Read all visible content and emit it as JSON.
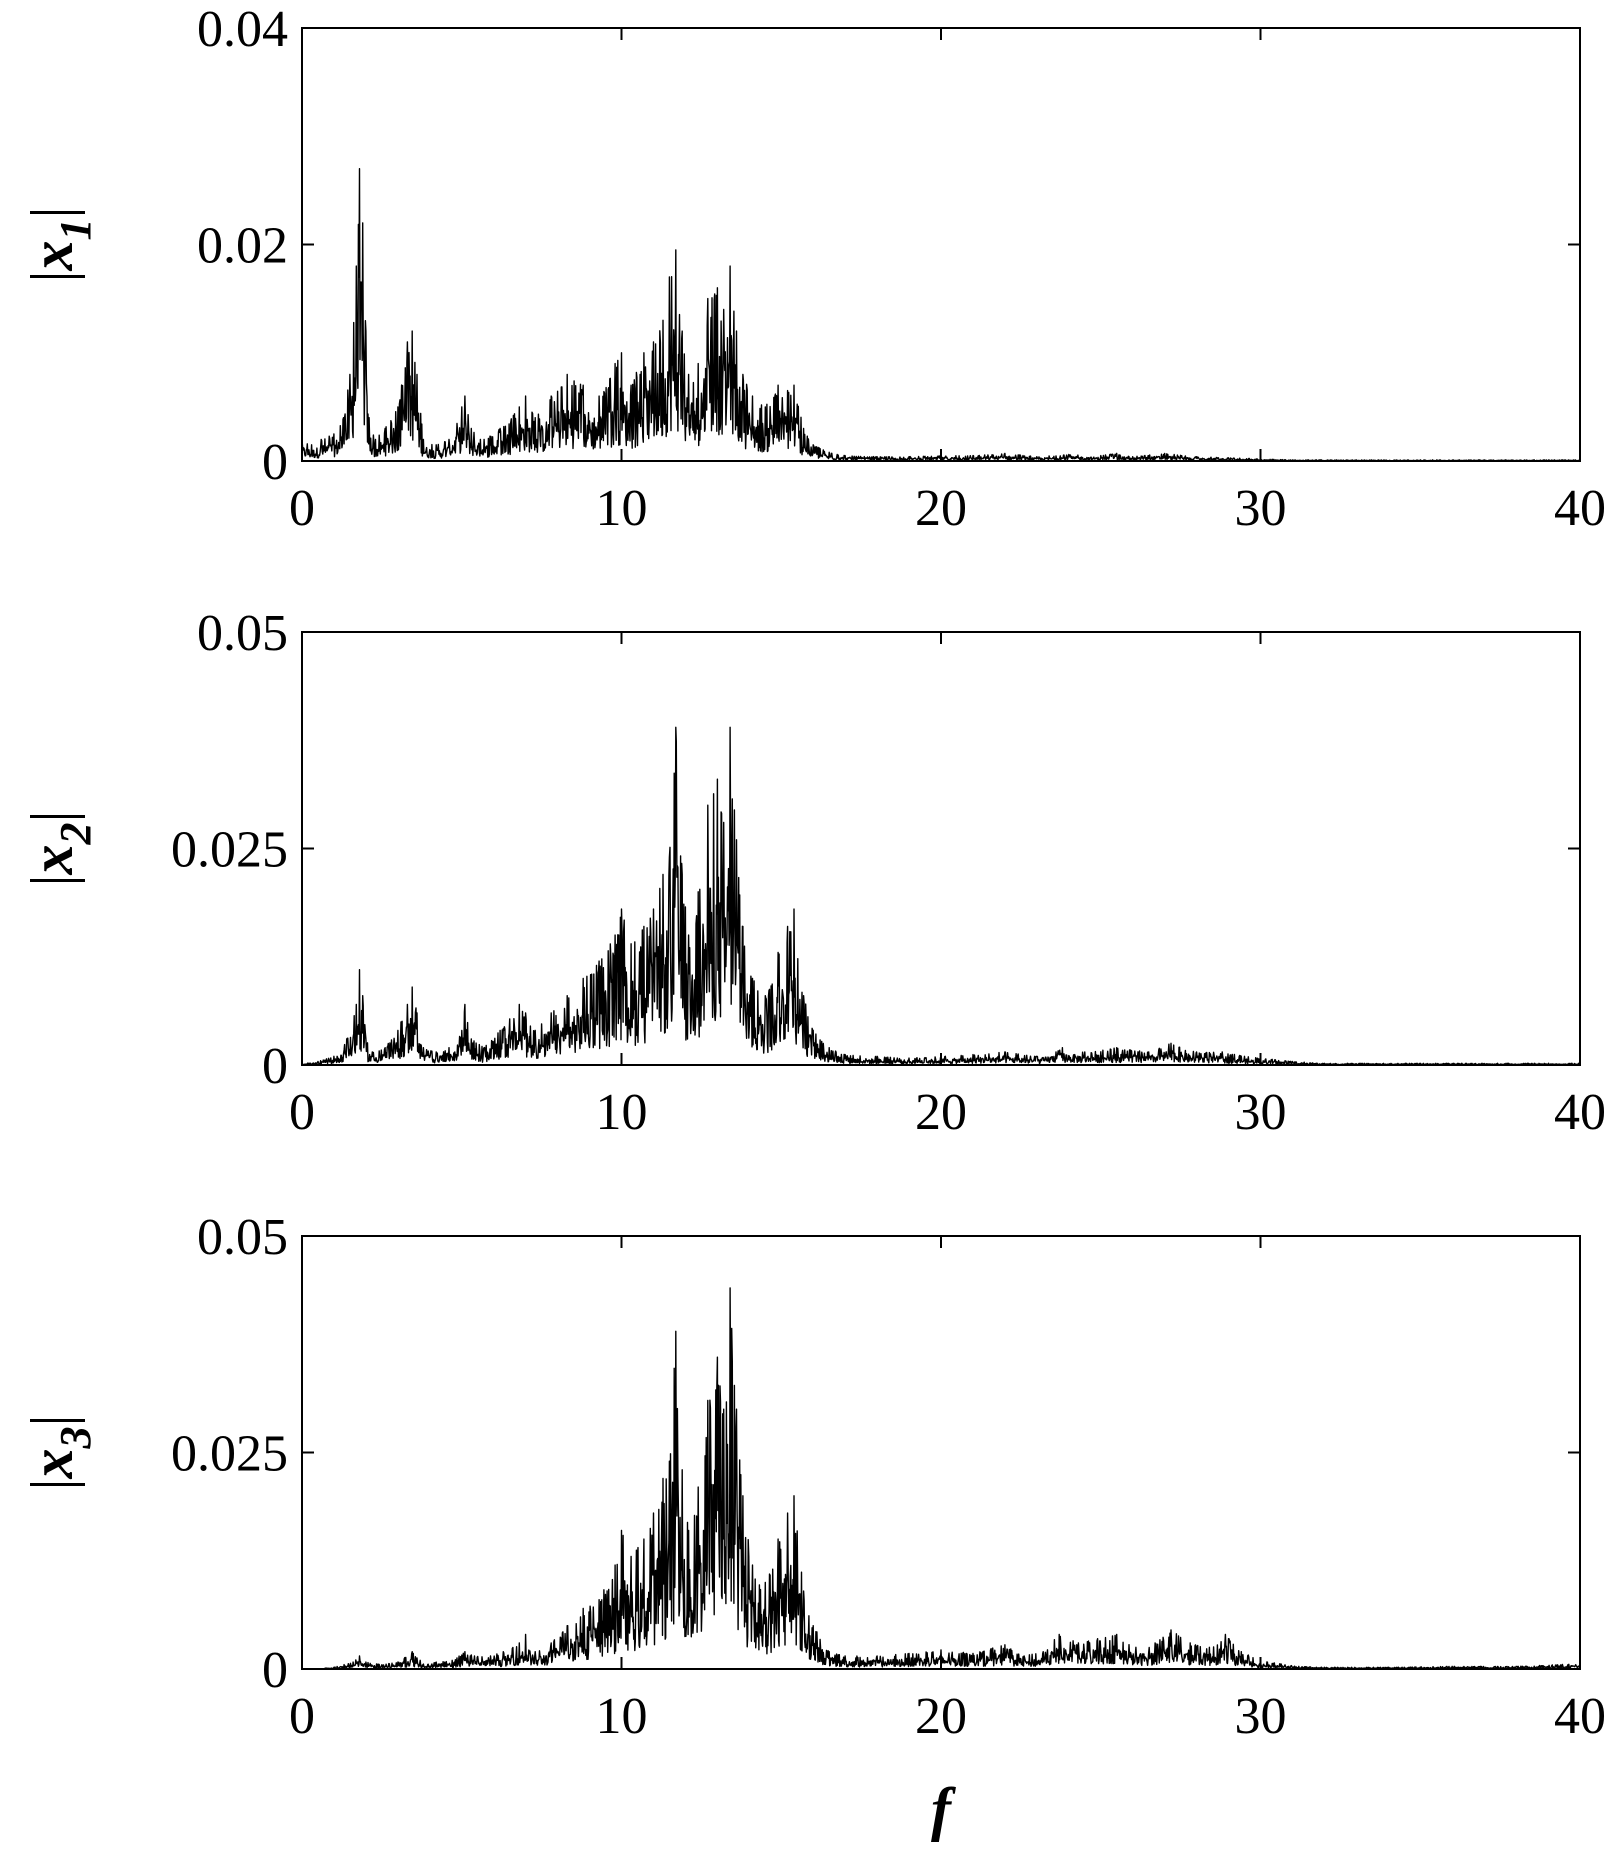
{
  "chart_data": [
    {
      "type": "line",
      "ylabel": "|x1|",
      "ylabel_main": "x",
      "ylabel_sub": "1",
      "xlim": [
        0,
        40
      ],
      "ylim": [
        0,
        0.04
      ],
      "xticks": [
        "0",
        "10",
        "20",
        "30",
        "40"
      ],
      "yticks": [
        "0",
        "0.02",
        "0.04"
      ],
      "ytick_values": [
        0,
        0.02,
        0.04
      ],
      "grid": false,
      "series": [
        {
          "x": [
            0,
            0.3,
            0.6,
            1.0,
            1.3,
            1.5,
            1.7,
            1.8,
            1.9,
            2.0,
            2.1,
            2.3,
            2.6,
            3.0,
            3.3,
            3.45,
            3.6,
            3.8,
            4.2,
            4.6,
            5.0,
            5.1,
            5.3,
            5.7,
            6.2,
            6.8,
            7.0,
            7.3,
            7.8,
            8.3,
            8.8,
            9.3,
            9.8,
            10.0,
            10.3,
            10.7,
            11.0,
            11.3,
            11.5,
            11.7,
            11.9,
            12.1,
            12.4,
            12.7,
            13.0,
            13.2,
            13.4,
            13.6,
            13.8,
            14.1,
            14.5,
            14.9,
            15.2,
            15.4,
            15.7,
            16.0,
            16.5,
            17.0,
            18.0,
            19.0,
            20.0,
            21.0,
            22.0,
            23.0,
            24.0,
            25.0,
            25.5,
            26.0,
            27.0,
            28.0,
            29.0,
            30.0,
            31.0,
            33.0,
            35.0,
            37.0,
            40.0
          ],
          "y": [
            0.002,
            0.0015,
            0.002,
            0.0025,
            0.004,
            0.008,
            0.018,
            0.027,
            0.022,
            0.012,
            0.004,
            0.002,
            0.003,
            0.005,
            0.011,
            0.012,
            0.008,
            0.002,
            0.0015,
            0.002,
            0.005,
            0.006,
            0.003,
            0.002,
            0.003,
            0.005,
            0.006,
            0.004,
            0.006,
            0.008,
            0.007,
            0.006,
            0.009,
            0.01,
            0.007,
            0.01,
            0.011,
            0.013,
            0.017,
            0.0195,
            0.012,
            0.008,
            0.009,
            0.015,
            0.016,
            0.014,
            0.018,
            0.012,
            0.008,
            0.006,
            0.005,
            0.007,
            0.0065,
            0.007,
            0.003,
            0.0015,
            0.0008,
            0.0005,
            0.0004,
            0.0004,
            0.0005,
            0.0005,
            0.0007,
            0.0004,
            0.0006,
            0.0005,
            0.0007,
            0.0004,
            0.0007,
            0.0004,
            0.0003,
            0.0002,
            0.0001,
            0.0001,
            0.0001,
            0.0001,
            0.0001
          ]
        }
      ]
    },
    {
      "type": "line",
      "ylabel": "|x2|",
      "ylabel_main": "x",
      "ylabel_sub": "2",
      "xlim": [
        0,
        40
      ],
      "ylim": [
        0,
        0.05
      ],
      "xticks": [
        "0",
        "10",
        "20",
        "30",
        "40"
      ],
      "yticks": [
        "0",
        "0.025",
        "0.05"
      ],
      "ytick_values": [
        0,
        0.025,
        0.05
      ],
      "grid": false,
      "series": [
        {
          "x": [
            0,
            0.5,
            1.0,
            1.4,
            1.7,
            1.8,
            1.9,
            2.0,
            2.2,
            2.6,
            3.0,
            3.3,
            3.45,
            3.6,
            3.8,
            4.2,
            4.6,
            5.0,
            5.1,
            5.3,
            5.7,
            6.2,
            6.8,
            7.0,
            7.3,
            7.8,
            8.3,
            8.8,
            9.3,
            9.8,
            10.0,
            10.3,
            10.7,
            11.0,
            11.3,
            11.5,
            11.7,
            11.9,
            12.1,
            12.4,
            12.7,
            13.0,
            13.2,
            13.4,
            13.6,
            13.8,
            14.1,
            14.5,
            14.9,
            15.2,
            15.4,
            15.7,
            16.0,
            16.5,
            17.0,
            18.0,
            19.0,
            20.0,
            21.0,
            22.0,
            23.0,
            23.8,
            24.5,
            25.5,
            26.5,
            27.2,
            28.0,
            28.8,
            29.5,
            30.0,
            31.0,
            32.0,
            35.0,
            40.0
          ],
          "y": [
            0.0002,
            0.0004,
            0.001,
            0.003,
            0.007,
            0.011,
            0.008,
            0.003,
            0.0015,
            0.002,
            0.004,
            0.007,
            0.009,
            0.006,
            0.002,
            0.0015,
            0.002,
            0.004,
            0.007,
            0.003,
            0.002,
            0.004,
            0.007,
            0.006,
            0.004,
            0.006,
            0.008,
            0.01,
            0.012,
            0.015,
            0.018,
            0.014,
            0.016,
            0.018,
            0.022,
            0.024,
            0.039,
            0.022,
            0.015,
            0.02,
            0.03,
            0.033,
            0.028,
            0.039,
            0.026,
            0.016,
            0.01,
            0.008,
            0.013,
            0.016,
            0.018,
            0.008,
            0.004,
            0.002,
            0.0012,
            0.001,
            0.0008,
            0.001,
            0.0012,
            0.0015,
            0.001,
            0.002,
            0.0015,
            0.002,
            0.0015,
            0.0025,
            0.0015,
            0.0015,
            0.001,
            0.0008,
            0.0004,
            0.0002,
            0.0002,
            0.0002
          ]
        }
      ]
    },
    {
      "type": "line",
      "ylabel": "|x3|",
      "ylabel_main": "x",
      "ylabel_sub": "3",
      "xlabel": "f",
      "xlim": [
        0,
        40
      ],
      "ylim": [
        0,
        0.05
      ],
      "xticks": [
        "0",
        "10",
        "20",
        "30",
        "40"
      ],
      "yticks": [
        "0",
        "0.025",
        "0.05"
      ],
      "ytick_values": [
        0,
        0.025,
        0.05
      ],
      "grid": false,
      "series": [
        {
          "x": [
            0,
            0.5,
            1.0,
            1.6,
            1.8,
            2.0,
            2.5,
            3.0,
            3.45,
            3.7,
            4.2,
            4.7,
            5.1,
            5.4,
            5.9,
            6.3,
            6.8,
            7.0,
            7.3,
            7.8,
            8.3,
            8.8,
            9.3,
            9.8,
            10.0,
            10.3,
            10.7,
            11.0,
            11.3,
            11.5,
            11.7,
            11.9,
            12.1,
            12.4,
            12.7,
            13.0,
            13.2,
            13.4,
            13.6,
            13.8,
            14.1,
            14.5,
            14.9,
            15.2,
            15.4,
            15.7,
            16.0,
            16.5,
            17.0,
            18.0,
            19.0,
            20.0,
            21.0,
            22.0,
            22.6,
            23.2,
            23.7,
            24.3,
            24.9,
            25.5,
            26.1,
            26.7,
            27.2,
            27.8,
            28.4,
            28.9,
            29.4,
            30.0,
            30.6,
            31.2,
            32.0,
            34.0,
            36.0,
            38.0,
            40.0
          ],
          "y": [
            0,
            0,
            0.0002,
            0.0008,
            0.0015,
            0.0008,
            0.0005,
            0.0008,
            0.002,
            0.001,
            0.0008,
            0.001,
            0.002,
            0.0015,
            0.0015,
            0.002,
            0.003,
            0.004,
            0.002,
            0.003,
            0.005,
            0.007,
            0.008,
            0.012,
            0.016,
            0.013,
            0.015,
            0.018,
            0.022,
            0.024,
            0.039,
            0.023,
            0.016,
            0.021,
            0.031,
            0.036,
            0.03,
            0.044,
            0.03,
            0.02,
            0.012,
            0.01,
            0.015,
            0.018,
            0.02,
            0.009,
            0.005,
            0.002,
            0.0015,
            0.0015,
            0.0018,
            0.0022,
            0.0018,
            0.0028,
            0.0015,
            0.002,
            0.004,
            0.003,
            0.0035,
            0.004,
            0.0025,
            0.003,
            0.0045,
            0.003,
            0.0025,
            0.004,
            0.002,
            0.001,
            0.0006,
            0.0003,
            0.0002,
            0.0002,
            0.0003,
            0.0003,
            0.0006
          ]
        }
      ]
    }
  ]
}
